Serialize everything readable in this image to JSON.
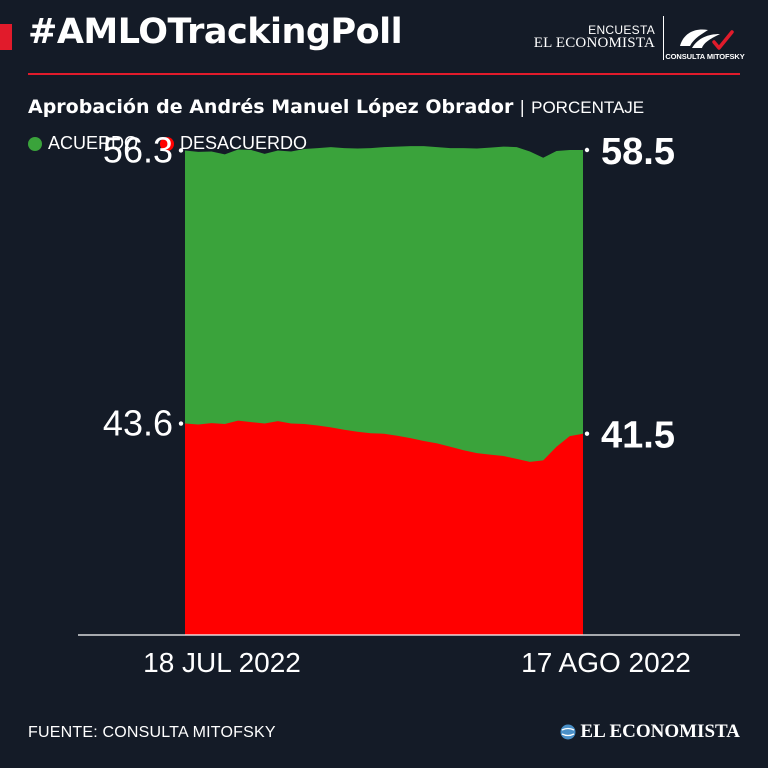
{
  "header": {
    "hashtag": "#AMLOTrackingPoll",
    "brand_small": "ENCUESTA",
    "brand_name": "EL ECONOMISTA",
    "logo_caption": "CONSULTA MITOFSKY"
  },
  "colors": {
    "accent": "#e11b2b",
    "background": "#141b27",
    "agree": "#3aa33b",
    "disagree": "#ff0000"
  },
  "footer": {
    "source": "FUENTE: CONSULTA MITOFSKY",
    "brand": "EL ECONOMISTA"
  },
  "chart_data": {
    "type": "area",
    "stacked": true,
    "title": "Aprobación de Andrés Manuel López Obrador",
    "unit": "PORCENTAJE",
    "legend_position": "top-left",
    "grid": false,
    "ylim": [
      0,
      100
    ],
    "x": [
      "2022-07-18",
      "2022-07-19",
      "2022-07-20",
      "2022-07-21",
      "2022-07-22",
      "2022-07-23",
      "2022-07-24",
      "2022-07-25",
      "2022-07-26",
      "2022-07-27",
      "2022-07-28",
      "2022-07-29",
      "2022-07-30",
      "2022-07-31",
      "2022-08-01",
      "2022-08-02",
      "2022-08-03",
      "2022-08-04",
      "2022-08-05",
      "2022-08-06",
      "2022-08-07",
      "2022-08-08",
      "2022-08-09",
      "2022-08-10",
      "2022-08-11",
      "2022-08-12",
      "2022-08-13",
      "2022-08-14",
      "2022-08-15",
      "2022-08-16",
      "2022-08-17"
    ],
    "x_tick_labels": [
      "18 JUL 2022",
      "17 AGO 2022"
    ],
    "series": [
      {
        "name": "ACUERDO",
        "values": [
          56.3,
          56.2,
          56.0,
          55.6,
          55.9,
          56.1,
          55.6,
          55.8,
          56.1,
          56.7,
          57.2,
          57.8,
          58.1,
          58.4,
          58.8,
          59.1,
          59.6,
          60.2,
          60.8,
          61.1,
          61.6,
          62.3,
          62.8,
          63.3,
          63.8,
          64.3,
          64.0,
          62.4,
          61.0,
          59.0,
          58.5
        ]
      },
      {
        "name": "DESACUERDO",
        "values": [
          43.6,
          43.4,
          43.7,
          43.5,
          44.2,
          43.9,
          43.6,
          44.1,
          43.6,
          43.5,
          43.2,
          42.8,
          42.3,
          41.9,
          41.6,
          41.5,
          41.1,
          40.6,
          40.0,
          39.5,
          38.8,
          38.1,
          37.5,
          37.2,
          36.9,
          36.3,
          35.7,
          36.0,
          38.8,
          41.0,
          41.5
        ]
      }
    ],
    "annotations": [
      {
        "series": "ACUERDO",
        "position": "start",
        "text": "56.3"
      },
      {
        "series": "DESACUERDO",
        "position": "start",
        "text": "43.6"
      },
      {
        "series": "ACUERDO",
        "position": "end",
        "text": "58.5"
      },
      {
        "series": "DESACUERDO",
        "position": "end",
        "text": "41.5"
      }
    ]
  }
}
